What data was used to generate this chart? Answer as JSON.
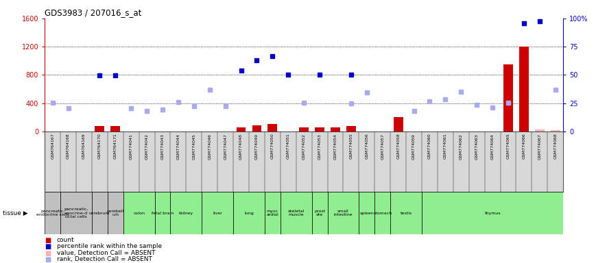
{
  "title": "GDS3983 / 207016_s_at",
  "samples": [
    "GSM764167",
    "GSM764168",
    "GSM764169",
    "GSM764170",
    "GSM764171",
    "GSM774041",
    "GSM774042",
    "GSM774043",
    "GSM774044",
    "GSM774045",
    "GSM774046",
    "GSM774047",
    "GSM774048",
    "GSM774049",
    "GSM774050",
    "GSM774051",
    "GSM774052",
    "GSM774053",
    "GSM774054",
    "GSM774055",
    "GSM774056",
    "GSM774057",
    "GSM774058",
    "GSM774059",
    "GSM774060",
    "GSM774061",
    "GSM774062",
    "GSM774063",
    "GSM774064",
    "GSM774065",
    "GSM774066",
    "GSM774067",
    "GSM774068"
  ],
  "count_present": [
    null,
    null,
    null,
    80,
    80,
    null,
    null,
    null,
    null,
    null,
    null,
    null,
    60,
    90,
    110,
    null,
    60,
    60,
    60,
    80,
    null,
    null,
    200,
    null,
    null,
    null,
    null,
    null,
    null,
    950,
    1200,
    null,
    null
  ],
  "count_absent": [
    null,
    null,
    null,
    null,
    null,
    null,
    null,
    null,
    null,
    null,
    null,
    null,
    null,
    null,
    null,
    null,
    null,
    null,
    null,
    null,
    null,
    null,
    null,
    null,
    null,
    null,
    null,
    null,
    null,
    null,
    null,
    30,
    20
  ],
  "rank_present": [
    null,
    null,
    null,
    790,
    790,
    null,
    null,
    null,
    null,
    null,
    null,
    null,
    860,
    1010,
    1070,
    800,
    null,
    800,
    null,
    800,
    null,
    null,
    null,
    null,
    null,
    null,
    null,
    null,
    null,
    null,
    1530,
    1560,
    null
  ],
  "rank_absent": [
    410,
    330,
    null,
    null,
    null,
    330,
    295,
    310,
    420,
    360,
    590,
    360,
    null,
    null,
    null,
    null,
    410,
    null,
    null,
    400,
    550,
    null,
    null,
    290,
    430,
    460,
    560,
    380,
    340,
    410,
    null,
    null,
    590
  ],
  "tissue_map": [
    {
      "label": "pancreatic,\nendocrine cells",
      "start": 0,
      "end": 1,
      "color": "#c0c0c0"
    },
    {
      "label": "pancreatic,\nexocrine-d\nuctal cells",
      "start": 1,
      "end": 3,
      "color": "#c0c0c0"
    },
    {
      "label": "cerebrum",
      "start": 3,
      "end": 4,
      "color": "#c0c0c0"
    },
    {
      "label": "cerebell\num",
      "start": 4,
      "end": 5,
      "color": "#c0c0c0"
    },
    {
      "label": "colon",
      "start": 5,
      "end": 7,
      "color": "#90ee90"
    },
    {
      "label": "fetal brain",
      "start": 7,
      "end": 8,
      "color": "#90ee90"
    },
    {
      "label": "kidney",
      "start": 8,
      "end": 10,
      "color": "#90ee90"
    },
    {
      "label": "liver",
      "start": 10,
      "end": 12,
      "color": "#90ee90"
    },
    {
      "label": "lung",
      "start": 12,
      "end": 14,
      "color": "#90ee90"
    },
    {
      "label": "myoc\nardial",
      "start": 14,
      "end": 15,
      "color": "#90ee90"
    },
    {
      "label": "skeletal\nmuscle",
      "start": 15,
      "end": 17,
      "color": "#90ee90"
    },
    {
      "label": "prost\nate",
      "start": 17,
      "end": 18,
      "color": "#90ee90"
    },
    {
      "label": "small\nintestine",
      "start": 18,
      "end": 20,
      "color": "#90ee90"
    },
    {
      "label": "spleen",
      "start": 20,
      "end": 21,
      "color": "#90ee90"
    },
    {
      "label": "stomach",
      "start": 21,
      "end": 22,
      "color": "#90ee90"
    },
    {
      "label": "testis",
      "start": 22,
      "end": 24,
      "color": "#90ee90"
    },
    {
      "label": "thymus",
      "start": 24,
      "end": 33,
      "color": "#90ee90"
    }
  ],
  "ylim_left": [
    0,
    1600
  ],
  "ylim_right": [
    0,
    100
  ],
  "yticks_left": [
    0,
    400,
    800,
    1200,
    1600
  ],
  "yticks_right": [
    0,
    25,
    50,
    75,
    100
  ],
  "bar_color": "#cc0000",
  "bar_absent_color": "#ffb0b0",
  "rank_present_color": "#0000cc",
  "rank_absent_color": "#aaaaee",
  "left_axis_color": "#cc0000",
  "right_axis_color": "#0000cc",
  "legend_items": [
    {
      "label": "count",
      "color": "#cc0000"
    },
    {
      "label": "percentile rank within the sample",
      "color": "#0000cc"
    },
    {
      "label": "value, Detection Call = ABSENT",
      "color": "#ffb0b0"
    },
    {
      "label": "rank, Detection Call = ABSENT",
      "color": "#aaaaee"
    }
  ]
}
